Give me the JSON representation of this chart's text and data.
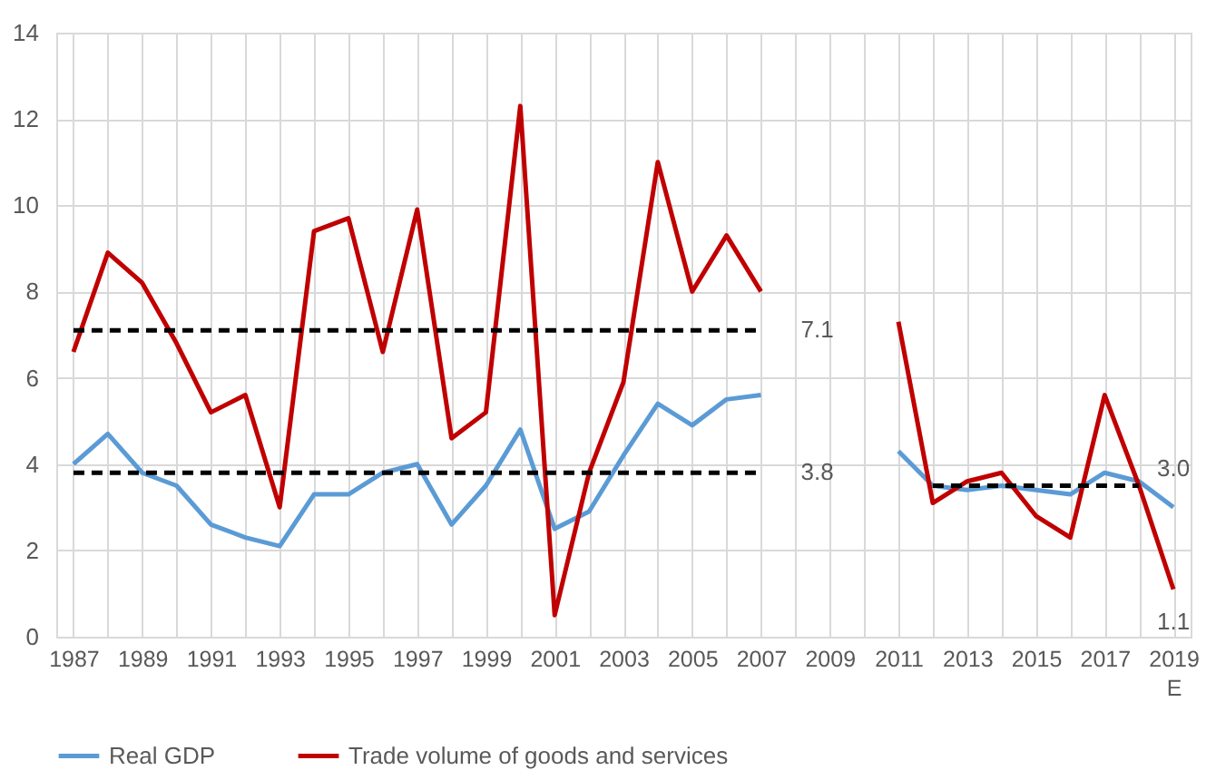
{
  "chart_data": {
    "type": "line",
    "categories": [
      "1987",
      null,
      "1989",
      null,
      "1991",
      null,
      "1993",
      null,
      "1995",
      null,
      "1997",
      null,
      "1999",
      null,
      "2001",
      null,
      "2003",
      null,
      "2005",
      null,
      "2007",
      null,
      "2009",
      null,
      "2011",
      null,
      "2013",
      null,
      "2015",
      null,
      "2017",
      null,
      "2019\nE"
    ],
    "series": [
      {
        "name": "Real GDP",
        "color": "#5b9bd5",
        "values": [
          4.0,
          4.7,
          3.8,
          3.5,
          2.6,
          2.3,
          2.1,
          3.3,
          3.3,
          3.8,
          4.0,
          2.6,
          3.5,
          4.8,
          2.5,
          2.9,
          4.2,
          5.4,
          4.9,
          5.5,
          5.6,
          null,
          null,
          null,
          4.3,
          3.5,
          3.4,
          3.5,
          3.4,
          3.3,
          3.8,
          3.6,
          3.0
        ],
        "value_labels": [
          null,
          null,
          null,
          null,
          null,
          null,
          null,
          null,
          null,
          null,
          null,
          null,
          null,
          null,
          null,
          null,
          null,
          null,
          null,
          null,
          null,
          null,
          null,
          null,
          null,
          null,
          null,
          null,
          null,
          null,
          null,
          null,
          "3.0"
        ]
      },
      {
        "name": "Trade volume of goods and services",
        "color": "#c00000",
        "values": [
          6.6,
          8.9,
          8.2,
          6.8,
          5.2,
          5.6,
          3.0,
          9.4,
          9.7,
          6.6,
          9.9,
          4.6,
          5.2,
          12.3,
          0.5,
          3.8,
          5.9,
          11.0,
          8.0,
          9.3,
          8.0,
          null,
          null,
          null,
          7.3,
          3.1,
          3.6,
          3.8,
          2.8,
          2.3,
          5.6,
          3.5,
          1.1
        ],
        "value_labels": [
          null,
          null,
          null,
          null,
          null,
          null,
          null,
          null,
          null,
          null,
          null,
          null,
          null,
          null,
          null,
          null,
          null,
          null,
          null,
          null,
          null,
          null,
          null,
          null,
          null,
          null,
          null,
          null,
          null,
          null,
          null,
          null,
          "1.1"
        ]
      },
      {
        "type": "line",
        "color": "#000000",
        "line_style": "dashed",
        "values": [
          7.1,
          7.1,
          7.1,
          7.1,
          7.1,
          7.1,
          7.1,
          7.1,
          7.1,
          7.1,
          7.1,
          7.1,
          7.1,
          7.1,
          7.1,
          7.1,
          7.1,
          7.1,
          7.1,
          7.1,
          7.1,
          null,
          null,
          null,
          null,
          null,
          null,
          null,
          null,
          null,
          null,
          null,
          null
        ],
        "value_labels": [
          null,
          null,
          null,
          null,
          null,
          null,
          null,
          null,
          null,
          null,
          null,
          null,
          null,
          null,
          null,
          null,
          null,
          null,
          null,
          null,
          "7.1",
          null,
          null,
          null,
          null,
          null,
          null,
          null,
          null,
          null,
          null,
          null,
          null
        ]
      },
      {
        "type": "line",
        "color": "#000000",
        "line_style": "dashed",
        "values": [
          3.8,
          3.8,
          3.8,
          3.8,
          3.8,
          3.8,
          3.8,
          3.8,
          3.8,
          3.8,
          3.8,
          3.8,
          3.8,
          3.8,
          3.8,
          3.8,
          3.8,
          3.8,
          3.8,
          3.8,
          3.8,
          null,
          null,
          null,
          null,
          null,
          null,
          null,
          null,
          null,
          null,
          null,
          null
        ],
        "value_labels": [
          null,
          null,
          null,
          null,
          null,
          null,
          null,
          null,
          null,
          null,
          null,
          null,
          null,
          null,
          null,
          null,
          null,
          null,
          null,
          null,
          "3.8",
          null,
          null,
          null,
          null,
          null,
          null,
          null,
          null,
          null,
          null,
          null,
          null
        ]
      },
      {
        "type": "line",
        "color": "#000000",
        "line_style": "dashed",
        "values": [
          null,
          null,
          null,
          null,
          null,
          null,
          null,
          null,
          null,
          null,
          null,
          null,
          null,
          null,
          null,
          null,
          null,
          null,
          null,
          null,
          null,
          null,
          null,
          null,
          null,
          3.5,
          3.5,
          3.5,
          3.5,
          3.5,
          3.5,
          3.5,
          null
        ]
      }
    ],
    "ylim": [
      0,
      14
    ],
    "yticks": [
      0,
      2,
      4,
      6,
      8,
      10,
      12,
      14
    ],
    "grid": true,
    "legend": "bottom"
  }
}
